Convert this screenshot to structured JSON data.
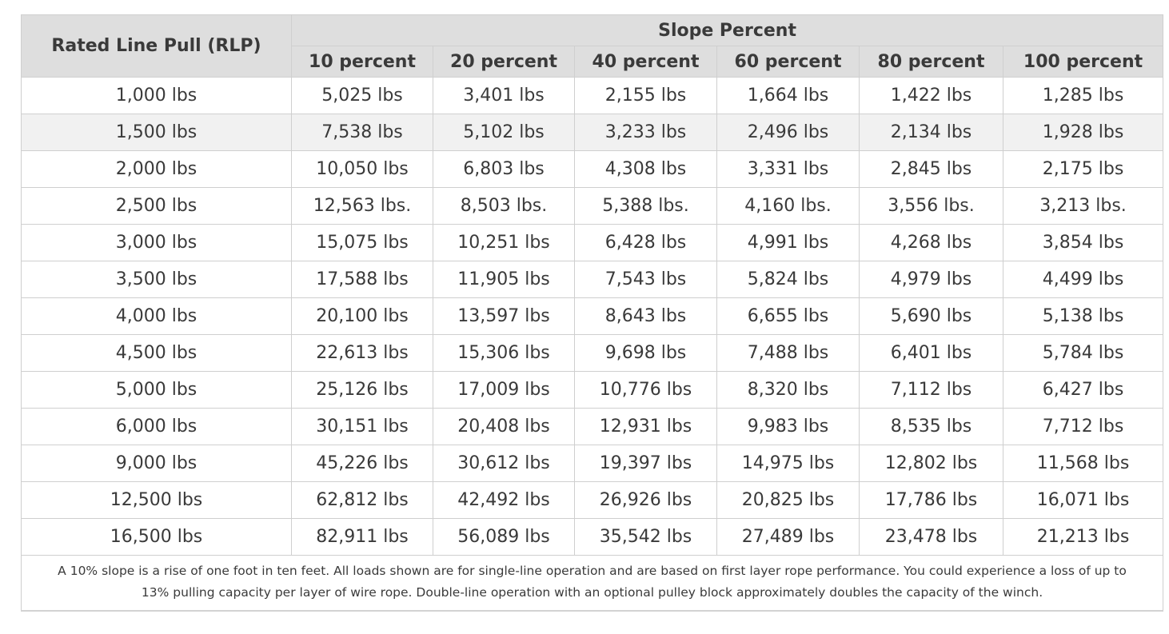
{
  "table": {
    "row_header": "Rated Line Pull (RLP)",
    "group_header": "Slope Percent",
    "columns": [
      "10 percent",
      "20 percent",
      "40 percent",
      "60 percent",
      "80 percent",
      "100 percent"
    ],
    "rows": [
      {
        "rlp": "1,000 lbs",
        "values": [
          "5,025 lbs",
          "3,401 lbs",
          "2,155 lbs",
          "1,664 lbs",
          "1,422 lbs",
          "1,285 lbs"
        ]
      },
      {
        "rlp": "1,500 lbs",
        "values": [
          "7,538 lbs",
          "5,102 lbs",
          "3,233 lbs",
          "2,496 lbs",
          "2,134 lbs",
          "1,928 lbs"
        ]
      },
      {
        "rlp": "2,000 lbs",
        "values": [
          "10,050 lbs",
          "6,803 lbs",
          "4,308 lbs",
          "3,331 lbs",
          "2,845 lbs",
          "2,175 lbs"
        ]
      },
      {
        "rlp": "2,500 lbs",
        "values": [
          "12,563 lbs.",
          "8,503 lbs.",
          "5,388 lbs.",
          "4,160 lbs.",
          "3,556 lbs.",
          "3,213 lbs."
        ]
      },
      {
        "rlp": "3,000 lbs",
        "values": [
          "15,075 lbs",
          "10,251 lbs",
          "6,428 lbs",
          "4,991 lbs",
          "4,268 lbs",
          "3,854 lbs"
        ]
      },
      {
        "rlp": "3,500 lbs",
        "values": [
          "17,588 lbs",
          "11,905 lbs",
          "7,543 lbs",
          "5,824 lbs",
          "4,979 lbs",
          "4,499 lbs"
        ]
      },
      {
        "rlp": "4,000 lbs",
        "values": [
          "20,100 lbs",
          "13,597 lbs",
          "8,643 lbs",
          "6,655 lbs",
          "5,690 lbs",
          "5,138 lbs"
        ]
      },
      {
        "rlp": "4,500 lbs",
        "values": [
          "22,613 lbs",
          "15,306 lbs",
          "9,698 lbs",
          "7,488 lbs",
          "6,401 lbs",
          "5,784 lbs"
        ]
      },
      {
        "rlp": "5,000 lbs",
        "values": [
          "25,126 lbs",
          "17,009 lbs",
          "10,776 lbs",
          "8,320 lbs",
          "7,112 lbs",
          "6,427 lbs"
        ]
      },
      {
        "rlp": "6,000 lbs",
        "values": [
          "30,151 lbs",
          "20,408 lbs",
          "12,931 lbs",
          "9,983 lbs",
          "8,535 lbs",
          "7,712 lbs"
        ]
      },
      {
        "rlp": "9,000 lbs",
        "values": [
          "45,226 lbs",
          "30,612 lbs",
          "19,397 lbs",
          "14,975 lbs",
          "12,802 lbs",
          "11,568 lbs"
        ]
      },
      {
        "rlp": "12,500 lbs",
        "values": [
          "62,812 lbs",
          "42,492 lbs",
          "26,926 lbs",
          "20,825 lbs",
          "17,786 lbs",
          "16,071 lbs"
        ]
      },
      {
        "rlp": "16,500 lbs",
        "values": [
          "82,911 lbs",
          "56,089 lbs",
          "35,542 lbs",
          "27,489 lbs",
          "23,478 lbs",
          "21,213 lbs"
        ]
      }
    ],
    "footnote": "A 10% slope is a rise of one foot in ten feet. All loads shown are for single-line operation and are based on first layer rope performance. You could experience a loss of up to 13% pulling capacity per layer of wire rope. Double-line operation with an optional pulley block approximately doubles the capacity of the winch."
  },
  "colors": {
    "header_bg": "#dedede",
    "alt_row_bg": "#f1f1f1",
    "border": "#cfcfcf",
    "text": "#3a3a3a"
  }
}
